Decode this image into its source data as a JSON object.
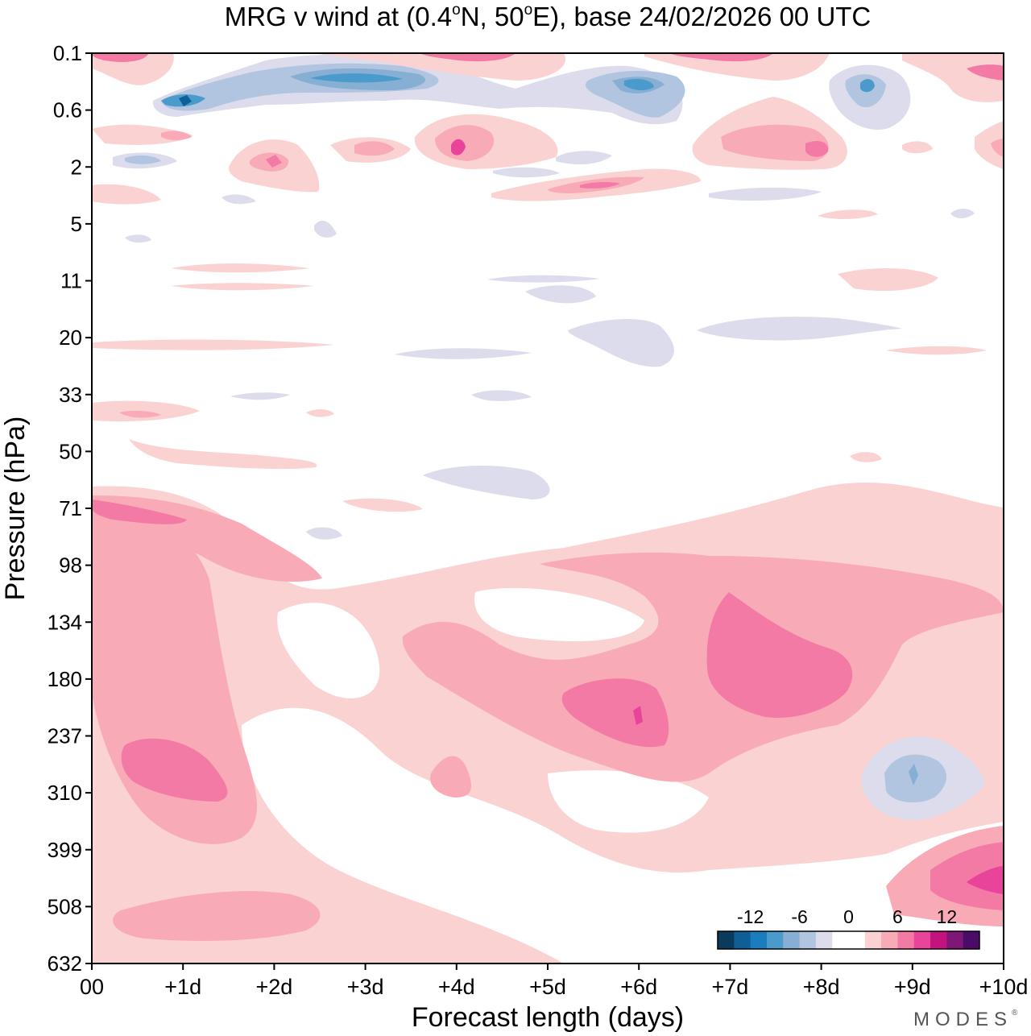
{
  "chart_data": {
    "type": "heatmap",
    "title": {
      "prefix": "MRG v wind at (0.4",
      "deg1": "o",
      "mid": "N, 50",
      "deg2": "o",
      "suffix": "E),  base 24/02/2026  00 UTC"
    },
    "xlabel": "Forecast length (days)",
    "ylabel": "Pressure (hPa)",
    "x_ticks": [
      {
        "label": "00",
        "value": 0
      },
      {
        "label": "+1d",
        "value": 1
      },
      {
        "label": "+2d",
        "value": 2
      },
      {
        "label": "+3d",
        "value": 3
      },
      {
        "label": "+4d",
        "value": 4
      },
      {
        "label": "+5d",
        "value": 5
      },
      {
        "label": "+6d",
        "value": 6
      },
      {
        "label": "+7d",
        "value": 7
      },
      {
        "label": "+8d",
        "value": 8
      },
      {
        "label": "+9d",
        "value": 9
      },
      {
        "label": "+10d",
        "value": 10
      }
    ],
    "y_ticks": [
      "0.1",
      "0.6",
      "2",
      "5",
      "11",
      "20",
      "33",
      "50",
      "71",
      "98",
      "134",
      "180",
      "237",
      "310",
      "399",
      "508",
      "632"
    ],
    "xlim": [
      0,
      10
    ],
    "ylim_labels": [
      "0.1",
      "632"
    ],
    "colorbar": {
      "labels": [
        {
          "text": "-12",
          "level": -12
        },
        {
          "text": "-6",
          "level": -6
        },
        {
          "text": "0",
          "level": 0
        },
        {
          "text": "6",
          "level": 6
        },
        {
          "text": "12",
          "level": 12
        }
      ],
      "levels": [
        -16,
        -14,
        -12,
        -10,
        -8,
        -6,
        -4,
        -2,
        0,
        2,
        4,
        6,
        8,
        10,
        12,
        14,
        16
      ],
      "colors": [
        "#0a3a5c",
        "#0d5f95",
        "#1a7dbd",
        "#4a9acb",
        "#86afd3",
        "#b1c4e0",
        "#dcdcec",
        "#ffffff",
        "#ffffff",
        "#fad2d2",
        "#f8aab7",
        "#f47aa6",
        "#e8449a",
        "#c4127f",
        "#7f1777",
        "#4a0c66"
      ]
    },
    "regions": [
      {
        "name": "stratosphere-lower-pink-band",
        "value": 2.5,
        "day": [
          0,
          10
        ],
        "p": [
          71,
          632
        ]
      },
      {
        "name": "pink-blob-day8-lower",
        "value": 5,
        "day": [
          4.5,
          8.5
        ],
        "p": [
          98,
          270
        ]
      },
      {
        "name": "max-day7-upper",
        "value": 8,
        "day": [
          6.8,
          8.3
        ],
        "p": [
          130,
          210
        ]
      },
      {
        "name": "max-day6",
        "value": 8,
        "day": [
          5.2,
          6.3
        ],
        "p": [
          185,
          240
        ]
      },
      {
        "name": "max-day1-mid",
        "value": 8,
        "day": [
          0.3,
          1.5
        ],
        "p": [
          240,
          320
        ]
      },
      {
        "name": "max-day10-low",
        "value": 10,
        "day": [
          9.2,
          10
        ],
        "p": [
          420,
          560
        ]
      },
      {
        "name": "neg-day9-mid",
        "value": -5,
        "day": [
          8.3,
          9.8
        ],
        "p": [
          240,
          350
        ]
      },
      {
        "name": "neg-top-day1",
        "value": -12,
        "day": [
          0.7,
          1.5
        ],
        "p": [
          0.4,
          0.8
        ]
      },
      {
        "name": "neg-top-day3",
        "value": -10,
        "day": [
          2.3,
          3.8
        ],
        "p": [
          0.2,
          0.5
        ]
      },
      {
        "name": "neg-top-day6",
        "value": -10,
        "day": [
          5.5,
          6.3
        ],
        "p": [
          0.3,
          0.8
        ]
      },
      {
        "name": "neg-top-day8",
        "value": -8,
        "day": [
          8.3,
          8.7
        ],
        "p": [
          0.3,
          0.8
        ]
      },
      {
        "name": "pos-day4-upper",
        "value": 10,
        "day": [
          3.5,
          4.5
        ],
        "p": [
          1,
          3
        ]
      }
    ],
    "legend_placement": "bottom-right",
    "watermark": "MODES"
  }
}
